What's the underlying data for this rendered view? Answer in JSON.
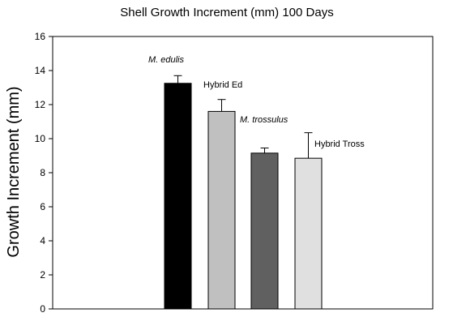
{
  "chart_data": {
    "type": "bar",
    "title": "Shell Growth Increment (mm) 100 Days",
    "xlabel": "",
    "ylabel": "Growth Increment (mm)",
    "ylim": [
      0,
      16
    ],
    "yticks": [
      0,
      2,
      4,
      6,
      8,
      10,
      12,
      14,
      16
    ],
    "grid": false,
    "categories": [
      "M. edulis",
      "Hybrid Ed",
      "M. trossulus",
      "Hybrid Tross"
    ],
    "italic_labels": [
      true,
      false,
      true,
      false
    ],
    "values": [
      13.25,
      11.6,
      9.15,
      8.85
    ],
    "error_upper": [
      13.7,
      12.3,
      9.45,
      10.35
    ],
    "colors": [
      "#000000",
      "#c0c0c0",
      "#606060",
      "#e0e0e0"
    ]
  }
}
